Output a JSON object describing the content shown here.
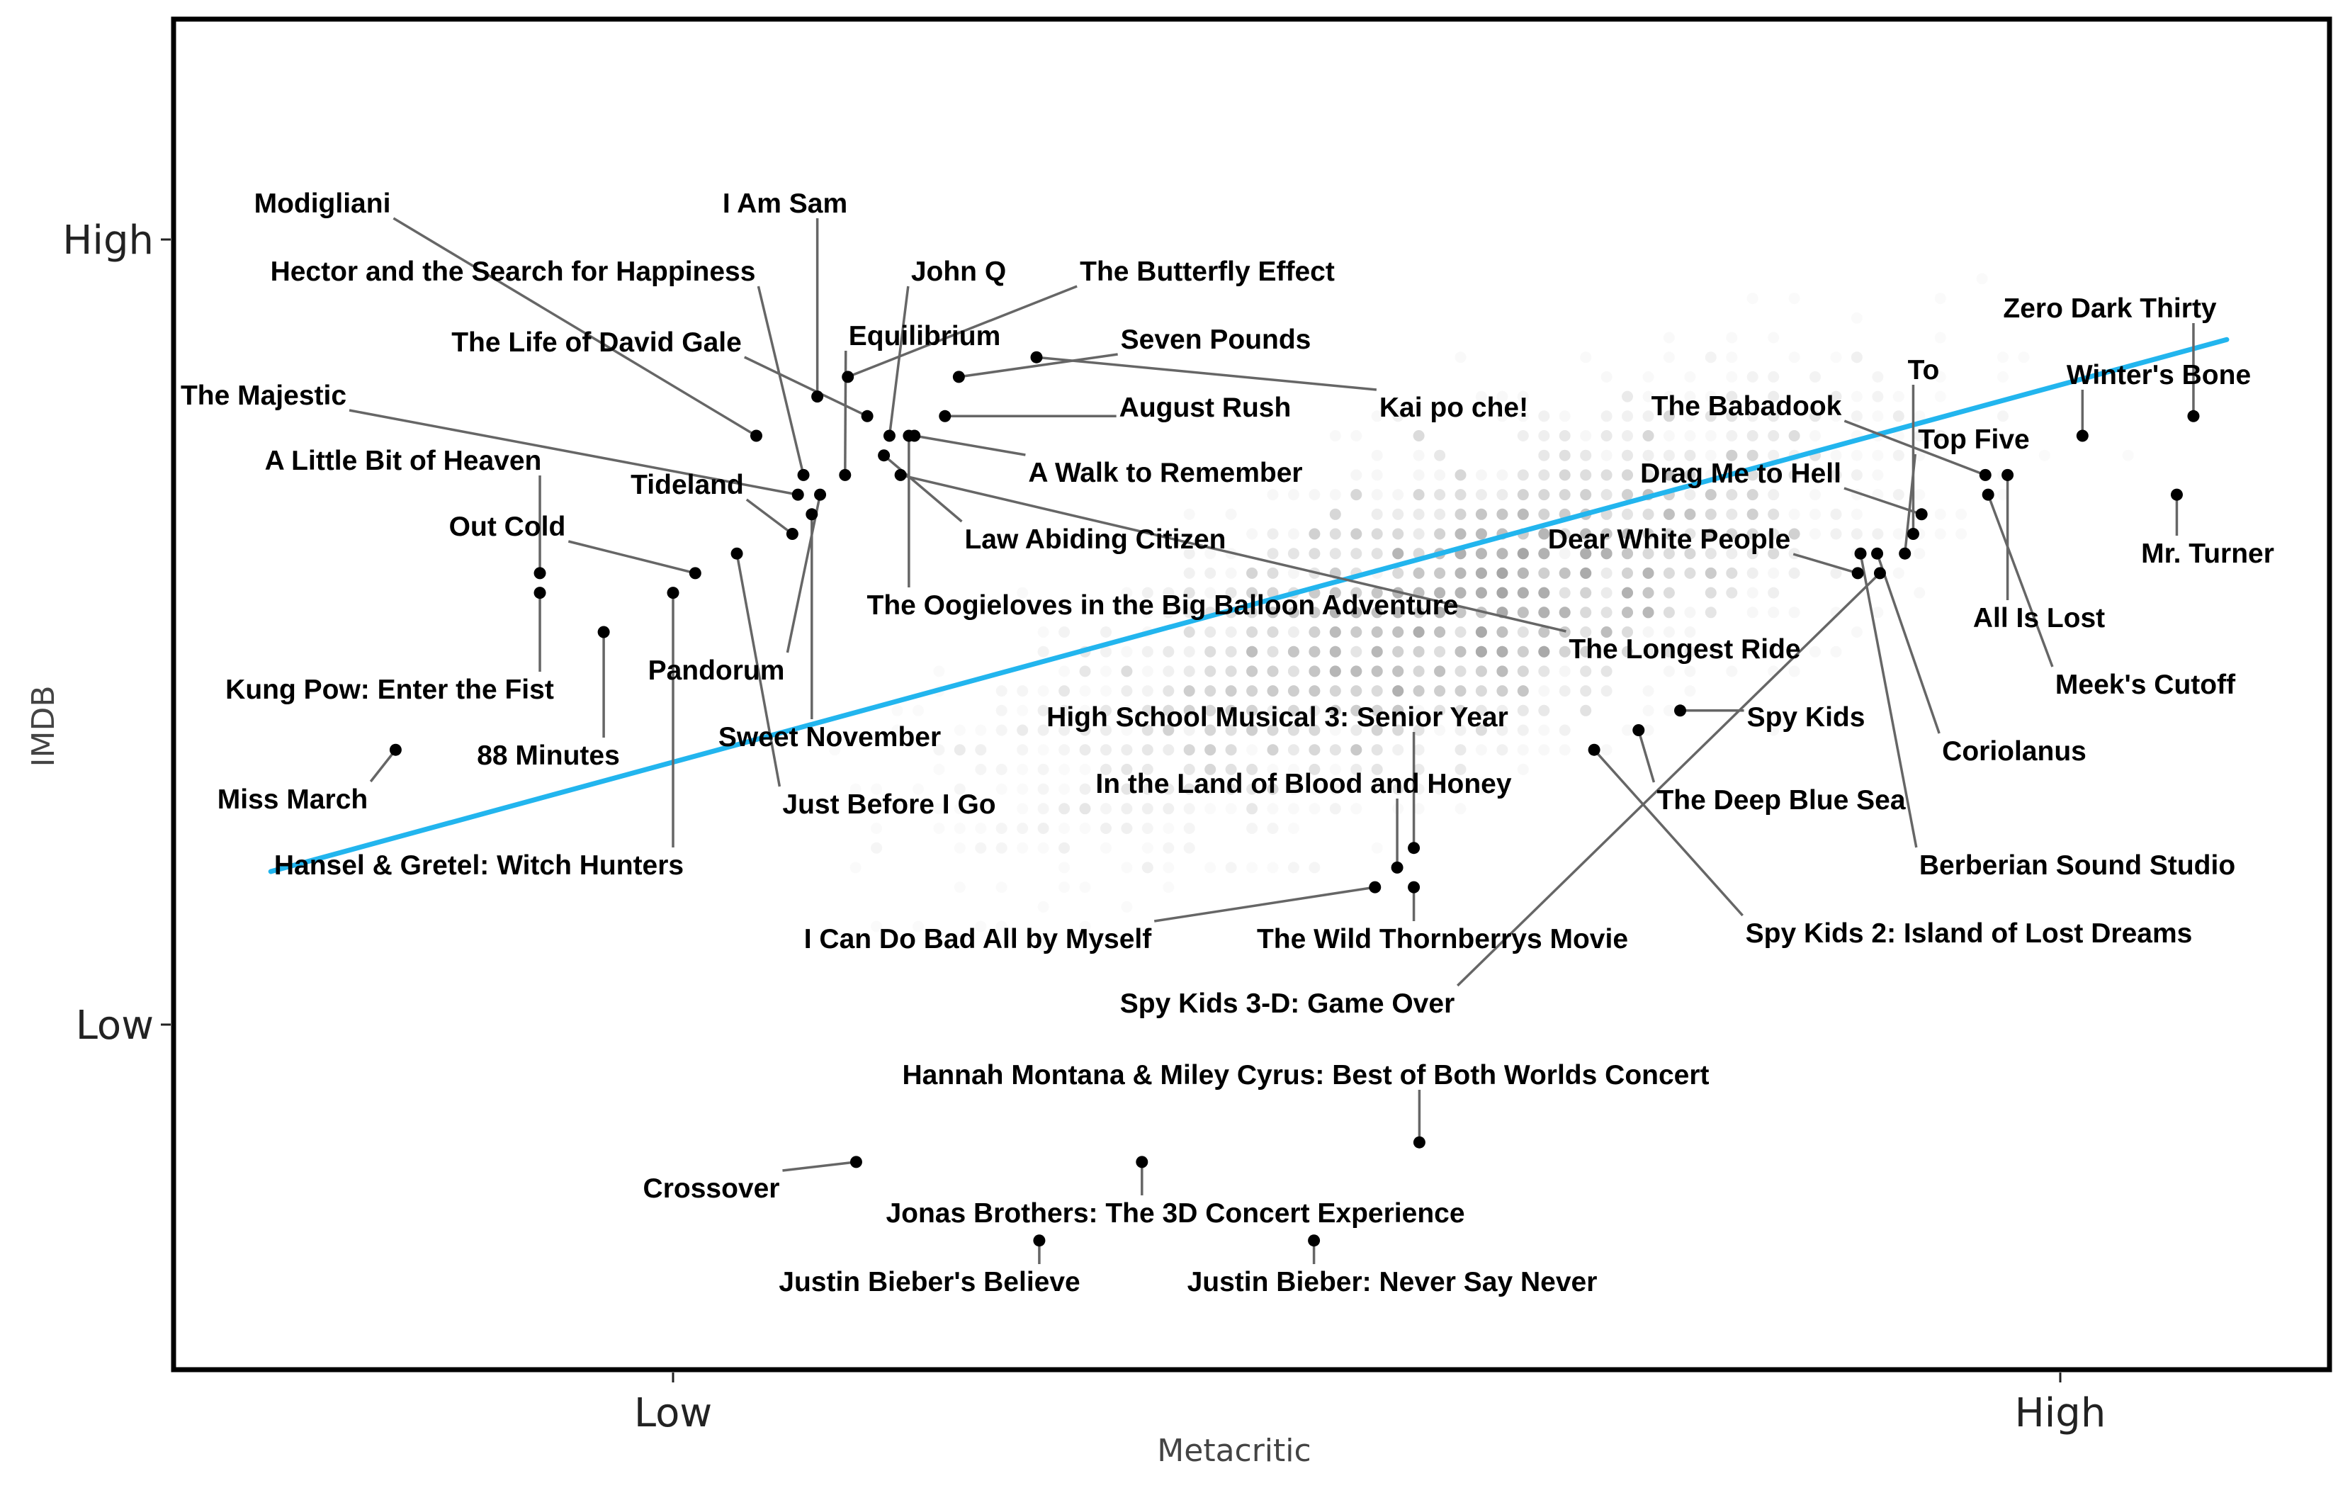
{
  "chart_data": {
    "type": "scatter",
    "title": "",
    "xlabel": "Metacritic",
    "ylabel": "IMDB",
    "x_ticks": [
      {
        "value": 25,
        "label": "Low"
      },
      {
        "value": 75,
        "label": "High"
      }
    ],
    "y_ticks": [
      {
        "value": 4,
        "label": "Low"
      },
      {
        "value": 8,
        "label": "High"
      }
    ],
    "xlim": [
      7,
      84
    ],
    "ylim": [
      2.3,
      9.4
    ],
    "trend_line": {
      "color": "#22b5ee",
      "points": [
        [
          10.5,
          4.78
        ],
        [
          81,
          7.49
        ]
      ]
    },
    "background_points_color": "#888888",
    "highlight_color": "#000000",
    "highlighted": [
      {
        "name": "Modigliani",
        "x": 28.0,
        "y": 7.0
      },
      {
        "name": "Hector and the Search for Happiness",
        "x": 29.7,
        "y": 6.8
      },
      {
        "name": "I Am Sam",
        "x": 30.2,
        "y": 7.2
      },
      {
        "name": "The Life of David Gale",
        "x": 32.0,
        "y": 7.1
      },
      {
        "name": "John Q",
        "x": 32.8,
        "y": 7.0
      },
      {
        "name": "Equilibrium",
        "x": 31.2,
        "y": 6.8
      },
      {
        "name": "The Butterfly Effect",
        "x": 31.3,
        "y": 7.3
      },
      {
        "name": "Seven Pounds",
        "x": 35.3,
        "y": 7.3
      },
      {
        "name": "August Rush",
        "x": 34.8,
        "y": 7.1
      },
      {
        "name": "Kai po che!",
        "x": 38.1,
        "y": 7.4
      },
      {
        "name": "A Walk to Remember",
        "x": 33.7,
        "y": 7.0
      },
      {
        "name": "Law Abiding Citizen",
        "x": 32.6,
        "y": 6.9
      },
      {
        "name": "The Oogieloves in the Big Balloon Adventure",
        "x": 33.5,
        "y": 7.0
      },
      {
        "name": "The Longest Ride",
        "x": 33.2,
        "y": 6.8
      },
      {
        "name": "The Majestic",
        "x": 29.5,
        "y": 6.7
      },
      {
        "name": "A Little Bit of Heaven",
        "x": 20.2,
        "y": 6.3
      },
      {
        "name": "Tideland",
        "x": 29.3,
        "y": 6.5
      },
      {
        "name": "Out Cold",
        "x": 25.8,
        "y": 6.3
      },
      {
        "name": "Pandorum",
        "x": 30.3,
        "y": 6.7
      },
      {
        "name": "Sweet November",
        "x": 30.0,
        "y": 6.6
      },
      {
        "name": "Just Before I Go",
        "x": 27.3,
        "y": 6.4
      },
      {
        "name": "Kung Pow: Enter the Fist",
        "x": 20.2,
        "y": 6.2
      },
      {
        "name": "88 Minutes",
        "x": 22.5,
        "y": 6.0
      },
      {
        "name": "Hansel & Gretel: Witch Hunters",
        "x": 25.0,
        "y": 6.2
      },
      {
        "name": "Miss March",
        "x": 15.0,
        "y": 5.4
      },
      {
        "name": "High School Musical 3: Senior Year",
        "x": 51.7,
        "y": 4.9
      },
      {
        "name": "In the Land of Blood and Honey",
        "x": 51.1,
        "y": 4.8
      },
      {
        "name": "I Can Do Bad All by Myself",
        "x": 50.3,
        "y": 4.7
      },
      {
        "name": "The Wild Thornberrys Movie",
        "x": 51.7,
        "y": 4.7
      },
      {
        "name": "Spy Kids 3-D: Game Over",
        "x": 68.5,
        "y": 6.3
      },
      {
        "name": "Hannah Montana & Miley Cyrus: Best of Both Worlds Concert",
        "x": 51.9,
        "y": 3.4
      },
      {
        "name": "Crossover",
        "x": 31.6,
        "y": 3.3
      },
      {
        "name": "Jonas Brothers: The 3D Concert Experience",
        "x": 41.9,
        "y": 3.3
      },
      {
        "name": "Justin Bieber's Believe",
        "x": 38.2,
        "y": 2.9
      },
      {
        "name": "Justin Bieber: Never Say Never",
        "x": 48.1,
        "y": 2.9
      },
      {
        "name": "Spy Kids",
        "x": 61.3,
        "y": 5.6
      },
      {
        "name": "Spy Kids 2: Island of Lost Dreams",
        "x": 58.2,
        "y": 5.4
      },
      {
        "name": "The Deep Blue Sea",
        "x": 59.8,
        "y": 5.5
      },
      {
        "name": "Dear White People",
        "x": 67.7,
        "y": 6.3
      },
      {
        "name": "Drag Me to Hell",
        "x": 70.0,
        "y": 6.6
      },
      {
        "name": "To",
        "x": 69.7,
        "y": 6.5
      },
      {
        "name": "Top Five",
        "x": 69.4,
        "y": 6.4
      },
      {
        "name": "The Babadook",
        "x": 72.3,
        "y": 6.8
      },
      {
        "name": "All Is Lost",
        "x": 73.1,
        "y": 6.8
      },
      {
        "name": "Meek's Cutoff",
        "x": 72.4,
        "y": 6.7
      },
      {
        "name": "Coriolanus",
        "x": 68.4,
        "y": 6.4
      },
      {
        "name": "Berberian Sound Studio",
        "x": 67.8,
        "y": 6.4
      },
      {
        "name": "Zero Dark Thirty",
        "x": 79.8,
        "y": 7.1
      },
      {
        "name": "Winter's Bone",
        "x": 75.8,
        "y": 7.0
      },
      {
        "name": "Mr. Turner",
        "x": 79.2,
        "y": 6.7
      }
    ]
  }
}
